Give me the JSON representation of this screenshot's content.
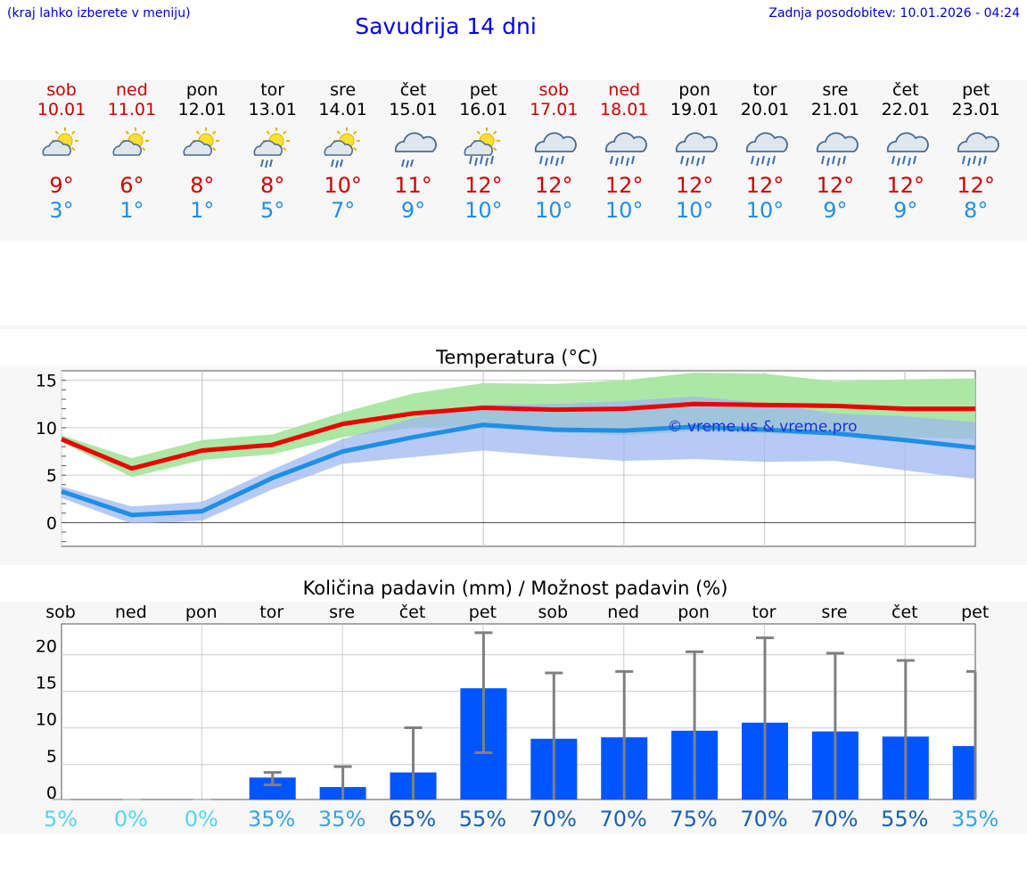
{
  "header": {
    "hint": "(kraj lahko izberete v meniju)",
    "title": "Savudrija 14 dni",
    "updated": "Zadnja posodobitev: 10.01.2026 - 04:24"
  },
  "days": [
    {
      "name": "sob",
      "date": "10.01",
      "weekend": true,
      "icon": "sun-cloud-icon",
      "max": "9°",
      "min": "3°"
    },
    {
      "name": "ned",
      "date": "11.01",
      "weekend": true,
      "icon": "sun-cloud-icon",
      "max": "6°",
      "min": "1°"
    },
    {
      "name": "pon",
      "date": "12.01",
      "weekend": false,
      "icon": "sun-cloud-icon",
      "max": "8°",
      "min": "1°"
    },
    {
      "name": "tor",
      "date": "13.01",
      "weekend": false,
      "icon": "sun-cloud-rain-icon",
      "max": "8°",
      "min": "5°"
    },
    {
      "name": "sre",
      "date": "14.01",
      "weekend": false,
      "icon": "sun-cloud-rain-icon",
      "max": "10°",
      "min": "7°"
    },
    {
      "name": "čet",
      "date": "15.01",
      "weekend": false,
      "icon": "cloud-rain-icon",
      "max": "11°",
      "min": "9°"
    },
    {
      "name": "pet",
      "date": "16.01",
      "weekend": false,
      "icon": "sun-cloud-heavy-rain-icon",
      "max": "12°",
      "min": "10°"
    },
    {
      "name": "sob",
      "date": "17.01",
      "weekend": true,
      "icon": "cloud-heavy-rain-icon",
      "max": "12°",
      "min": "10°"
    },
    {
      "name": "ned",
      "date": "18.01",
      "weekend": true,
      "icon": "cloud-heavy-rain-icon",
      "max": "12°",
      "min": "10°"
    },
    {
      "name": "pon",
      "date": "19.01",
      "weekend": false,
      "icon": "cloud-heavy-rain-icon",
      "max": "12°",
      "min": "10°"
    },
    {
      "name": "tor",
      "date": "20.01",
      "weekend": false,
      "icon": "cloud-heavy-rain-icon",
      "max": "12°",
      "min": "10°"
    },
    {
      "name": "sre",
      "date": "21.01",
      "weekend": false,
      "icon": "cloud-heavy-rain-icon",
      "max": "12°",
      "min": "9°"
    },
    {
      "name": "čet",
      "date": "22.01",
      "weekend": false,
      "icon": "cloud-heavy-rain-icon",
      "max": "12°",
      "min": "9°"
    },
    {
      "name": "pet",
      "date": "23.01",
      "weekend": false,
      "icon": "cloud-heavy-rain-icon",
      "max": "12°",
      "min": "8°"
    }
  ],
  "colors": {
    "max": "#ee0000",
    "min": "#1e8fe6",
    "maxBand": "#a8e6a0",
    "minBand": "#9db8f0",
    "bar": "#0055ff",
    "errorbar": "#808080"
  },
  "chart_data": [
    {
      "type": "line",
      "title": "Temperatura (°C)",
      "watermark": "© vreme.us & vreme.pro",
      "x": [
        "sob",
        "ned",
        "pon",
        "tor",
        "sre",
        "čet",
        "pet",
        "sob",
        "ned",
        "pon",
        "tor",
        "sre",
        "čet",
        "pet"
      ],
      "ylim": [
        -2.5,
        16
      ],
      "yticks": [
        0,
        5,
        10,
        15
      ],
      "series": [
        {
          "name": "max",
          "values": [
            8.8,
            5.7,
            7.6,
            8.2,
            10.4,
            11.5,
            12.1,
            11.9,
            12.0,
            12.5,
            12.4,
            12.3,
            12.0,
            12.0
          ],
          "band_low": [
            8.5,
            4.8,
            6.6,
            7.2,
            9.0,
            10.0,
            10.2,
            9.5,
            9.2,
            9.6,
            9.4,
            9.2,
            9.0,
            8.8
          ],
          "band_high": [
            9.2,
            6.8,
            8.7,
            9.3,
            11.6,
            13.6,
            14.7,
            14.6,
            15.0,
            15.8,
            15.7,
            14.9,
            15.1,
            15.2
          ]
        },
        {
          "name": "min",
          "values": [
            3.3,
            0.8,
            1.2,
            4.7,
            7.5,
            9.0,
            10.3,
            9.8,
            9.7,
            10.1,
            9.8,
            9.4,
            8.7,
            7.9
          ],
          "band_low": [
            2.6,
            -0.1,
            0.2,
            3.5,
            6.2,
            6.9,
            7.6,
            7.0,
            6.5,
            6.7,
            6.4,
            6.5,
            5.5,
            4.6
          ],
          "band_high": [
            3.8,
            1.7,
            2.2,
            5.6,
            8.8,
            11.0,
            12.4,
            12.5,
            12.8,
            13.3,
            12.6,
            11.5,
            11.2,
            10.6
          ]
        }
      ]
    },
    {
      "type": "bar",
      "title": "Količina padavin (mm) / Možnost padavin (%)",
      "categories": [
        "sob",
        "ned",
        "pon",
        "tor",
        "sre",
        "čet",
        "pet",
        "sob",
        "ned",
        "pon",
        "tor",
        "sre",
        "čet",
        "pet"
      ],
      "ylim": [
        -1,
        23
      ],
      "yticks": [
        0,
        5,
        10,
        15,
        20
      ],
      "values": [
        0,
        0,
        0,
        2.0,
        0.7,
        2.7,
        14.2,
        7.3,
        7.5,
        8.4,
        9.5,
        8.3,
        7.6,
        6.3
      ],
      "err_low": [
        0,
        0,
        0,
        1.0,
        0,
        0,
        5.4,
        0,
        0,
        0,
        0,
        0,
        0,
        0
      ],
      "err_high": [
        0,
        0,
        0,
        2.7,
        3.5,
        8.8,
        21.8,
        16.3,
        16.5,
        19.2,
        21.1,
        19.0,
        18.0,
        16.5
      ],
      "probabilities": [
        "5%",
        "0%",
        "0%",
        "35%",
        "35%",
        "65%",
        "55%",
        "70%",
        "70%",
        "75%",
        "70%",
        "70%",
        "55%",
        "35%"
      ],
      "probability_colors": [
        "#55d4f0",
        "#55d4f0",
        "#55d4f0",
        "#3aa3e0",
        "#3aa3e0",
        "#1a60b0",
        "#1a60b0",
        "#1a60b0",
        "#1a60b0",
        "#1a60b0",
        "#1a60b0",
        "#1a60b0",
        "#1a60b0",
        "#3aa3e0"
      ]
    }
  ]
}
